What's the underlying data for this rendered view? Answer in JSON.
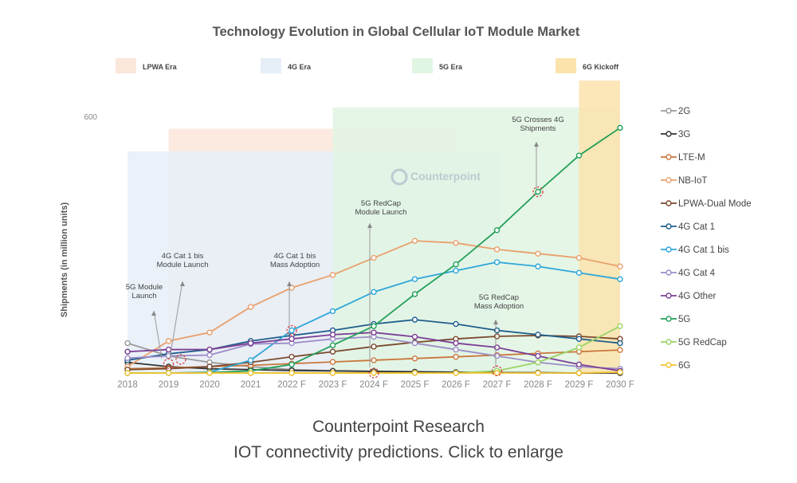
{
  "chart_data": {
    "type": "line",
    "title": "Technology Evolution in Global Cellular IoT Module Market",
    "ylabel": "Shipments (in million units)",
    "xlabel": "",
    "y_tick": "600",
    "ylim": [
      0,
      660
    ],
    "categories": [
      "2018",
      "2019",
      "2020",
      "2021",
      "2022 F",
      "2023 F",
      "2024 F",
      "2025 F",
      "2026 F",
      "2027 F",
      "2028 F",
      "2029 F",
      "2030 F"
    ],
    "grid": false,
    "legend_position": "right",
    "eras": [
      {
        "label": "LPWA Era",
        "color": "#fbe6dc",
        "start": 2019,
        "end": 2026,
        "top": 573
      },
      {
        "label": "4G Era",
        "color": "#e6eef8",
        "start": 2018,
        "end": 2027.1,
        "top": 520
      },
      {
        "label": "5G Era",
        "color": "#e1f5e3",
        "start": 2023,
        "end": 2030,
        "top": 623
      },
      {
        "label": "6G Kickoff",
        "color": "#fbe3ad",
        "start": 2029,
        "end": 2030,
        "top": 686
      }
    ],
    "series": [
      {
        "name": "2G",
        "color": "#999999",
        "values": [
          70,
          40,
          25,
          15,
          8,
          5,
          3,
          2,
          1,
          1,
          0,
          0,
          0
        ]
      },
      {
        "name": "3G",
        "color": "#333333",
        "values": [
          25,
          15,
          10,
          8,
          6,
          5,
          4,
          3,
          2,
          1,
          1,
          0,
          0
        ]
      },
      {
        "name": "LTE-M",
        "color": "#c9773b",
        "values": [
          10,
          12,
          15,
          18,
          22,
          26,
          30,
          34,
          38,
          42,
          46,
          50,
          54
        ]
      },
      {
        "name": "NB-IoT",
        "color": "#e8a06c",
        "values": [
          15,
          75,
          95,
          155,
          200,
          230,
          270,
          310,
          305,
          290,
          280,
          270,
          250
        ]
      },
      {
        "name": "LPWA-Dual Mode",
        "color": "#7a4a2e",
        "values": [
          8,
          10,
          15,
          25,
          38,
          50,
          62,
          72,
          80,
          86,
          88,
          86,
          80
        ]
      },
      {
        "name": "4G Cat 1",
        "color": "#1f5f8b",
        "values": [
          30,
          45,
          55,
          75,
          88,
          100,
          115,
          125,
          115,
          100,
          90,
          80,
          70
        ]
      },
      {
        "name": "4G Cat 1 bis",
        "color": "#2ea6d8",
        "values": [
          0,
          0,
          2,
          30,
          100,
          145,
          190,
          220,
          240,
          260,
          250,
          235,
          220
        ]
      },
      {
        "name": "4G Cat 4",
        "color": "#9b8cc7",
        "values": [
          35,
          40,
          42,
          68,
          70,
          80,
          85,
          70,
          55,
          40,
          25,
          15,
          10
        ]
      },
      {
        "name": "4G Other",
        "color": "#7b3f95",
        "values": [
          50,
          55,
          55,
          70,
          80,
          90,
          95,
          85,
          70,
          60,
          40,
          20,
          5
        ]
      },
      {
        "name": "5G",
        "color": "#24a05a",
        "values": [
          0,
          0,
          1,
          5,
          20,
          65,
          110,
          185,
          255,
          335,
          425,
          510,
          575
        ]
      },
      {
        "name": "5G RedCap",
        "color": "#9cd466",
        "values": [
          0,
          0,
          0,
          0,
          0,
          0,
          0,
          0,
          0,
          5,
          25,
          60,
          110
        ]
      },
      {
        "name": "6G",
        "color": "#f2c230",
        "values": [
          0,
          0,
          0,
          0,
          0,
          0,
          0,
          0,
          0,
          0,
          0,
          0,
          2
        ]
      }
    ],
    "annotations": [
      {
        "text": [
          "5G Module",
          "Launch"
        ],
        "x": 2019,
        "y": 22
      },
      {
        "text": [
          "4G Cat 1 bis",
          "Module Launch"
        ],
        "x": 2019.3,
        "y": 32
      },
      {
        "text": [
          "4G Cat 1 bis",
          "Mass Adoption"
        ],
        "x": 2022,
        "y": 100
      },
      {
        "text": [
          "5G RedCap",
          "Module Launch"
        ],
        "x": 2024,
        "y": 0
      },
      {
        "text": [
          "5G RedCap",
          "Mass Adoption"
        ],
        "x": 2027,
        "y": 5
      },
      {
        "text": [
          "5G Crosses 4G",
          "Shipments"
        ],
        "x": 2028,
        "y": 425
      }
    ],
    "watermark": "Counterpoint"
  },
  "caption": {
    "source": "Counterpoint Research",
    "text": "IOT connectivity predictions. Click to enlarge"
  }
}
